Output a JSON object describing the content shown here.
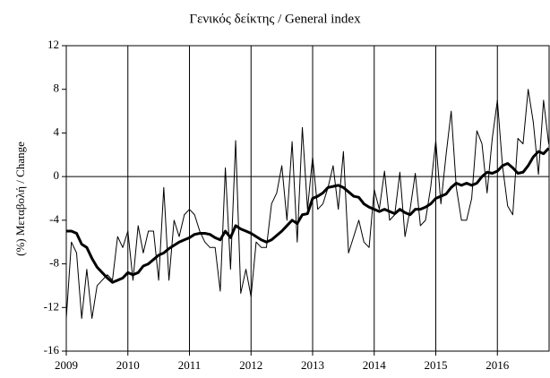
{
  "chart_data": {
    "type": "line",
    "title": "Γενικός δείκτης / General index",
    "y_label": "(%) Μεταβολή / Change",
    "x": [
      2009,
      2009.083,
      2009.167,
      2009.25,
      2009.333,
      2009.417,
      2009.5,
      2009.583,
      2009.667,
      2009.75,
      2009.833,
      2009.917,
      2010,
      2010.083,
      2010.167,
      2010.25,
      2010.333,
      2010.417,
      2010.5,
      2010.583,
      2010.667,
      2010.75,
      2010.833,
      2010.917,
      2011,
      2011.083,
      2011.167,
      2011.25,
      2011.333,
      2011.417,
      2011.5,
      2011.583,
      2011.667,
      2011.75,
      2011.833,
      2011.917,
      2012,
      2012.083,
      2012.167,
      2012.25,
      2012.333,
      2012.417,
      2012.5,
      2012.583,
      2012.667,
      2012.75,
      2012.833,
      2012.917,
      2013,
      2013.083,
      2013.167,
      2013.25,
      2013.333,
      2013.417,
      2013.5,
      2013.583,
      2013.667,
      2013.75,
      2013.833,
      2013.917,
      2014,
      2014.083,
      2014.167,
      2014.25,
      2014.333,
      2014.417,
      2014.5,
      2014.583,
      2014.667,
      2014.75,
      2014.833,
      2014.917,
      2015,
      2015.083,
      2015.167,
      2015.25,
      2015.333,
      2015.417,
      2015.5,
      2015.583,
      2015.667,
      2015.75,
      2015.833,
      2015.917,
      2016,
      2016.083,
      2016.167,
      2016.25,
      2016.333,
      2016.417,
      2016.5,
      2016.583,
      2016.667,
      2016.75,
      2016.833
    ],
    "series": [
      {
        "color": "#000000",
        "width": 1,
        "values": [
          -13,
          -6,
          -7,
          -13,
          -8.5,
          -13,
          -10,
          -9.5,
          -9,
          -9.5,
          -5.5,
          -6.5,
          -5,
          -9.5,
          -4.5,
          -7,
          -5,
          -5,
          -9.5,
          -1,
          -9.5,
          -4,
          -5.5,
          -3.5,
          -3,
          -3.5,
          -5,
          -6,
          -6.5,
          -6.5,
          -10.5,
          0.8,
          -8.5,
          3.3,
          -10.7,
          -8.5,
          -11,
          -6,
          -6.5,
          -6.5,
          -2.5,
          -1.5,
          1,
          -4,
          3.2,
          -6,
          4.5,
          -3,
          1.8,
          -3,
          -2.5,
          -1,
          1,
          -3,
          2.3,
          -7,
          -5.5,
          -4,
          -6,
          -6.5,
          -1.2,
          -3,
          0.5,
          -4,
          -3.5,
          0.4,
          -5.5,
          -3,
          0.3,
          -4.5,
          -4,
          -1,
          3.3,
          -2.5,
          2,
          6,
          -1,
          -4,
          -4,
          -2,
          4.2,
          3,
          -1.5,
          3.5,
          7,
          1,
          -2.7,
          -3.5,
          3.5,
          3,
          8,
          5,
          0.2,
          7,
          3
        ]
      },
      {
        "color": "#000000",
        "width": 3,
        "values": [
          -5,
          -5,
          -5.2,
          -6.2,
          -6.5,
          -7.5,
          -8.3,
          -8.8,
          -9.3,
          -9.7,
          -9.5,
          -9.3,
          -8.8,
          -9,
          -8.8,
          -8.2,
          -8,
          -7.6,
          -7.2,
          -7,
          -6.6,
          -6.3,
          -6,
          -5.8,
          -5.6,
          -5.3,
          -5.2,
          -5.2,
          -5.3,
          -5.6,
          -5.8,
          -5,
          -5.6,
          -4.5,
          -4.8,
          -5,
          -5.2,
          -5.5,
          -5.8,
          -6,
          -5.8,
          -5.4,
          -5,
          -4.5,
          -4,
          -4.3,
          -3.5,
          -3.4,
          -2,
          -1.8,
          -1.5,
          -1,
          -0.9,
          -0.8,
          -1,
          -1.4,
          -1.8,
          -1.9,
          -2.5,
          -2.8,
          -3,
          -3.2,
          -3,
          -3.2,
          -3.4,
          -3,
          -3.3,
          -3.5,
          -3,
          -3,
          -2.8,
          -2.5,
          -2,
          -1.8,
          -1.6,
          -1,
          -0.6,
          -0.8,
          -0.6,
          -0.8,
          -0.6,
          0,
          0.4,
          0.3,
          0.5,
          1,
          1.2,
          0.8,
          0.3,
          0.4,
          1,
          1.8,
          2.3,
          2.1,
          2.6
        ]
      }
    ],
    "xlim": [
      2009,
      2016.84
    ],
    "xticks": [
      2009,
      2010,
      2011,
      2012,
      2013,
      2014,
      2015,
      2016
    ],
    "ylim": [
      -16,
      12
    ],
    "yticks": [
      -16,
      -12,
      -8,
      -4,
      0,
      4,
      8,
      12
    ],
    "grid": true
  }
}
